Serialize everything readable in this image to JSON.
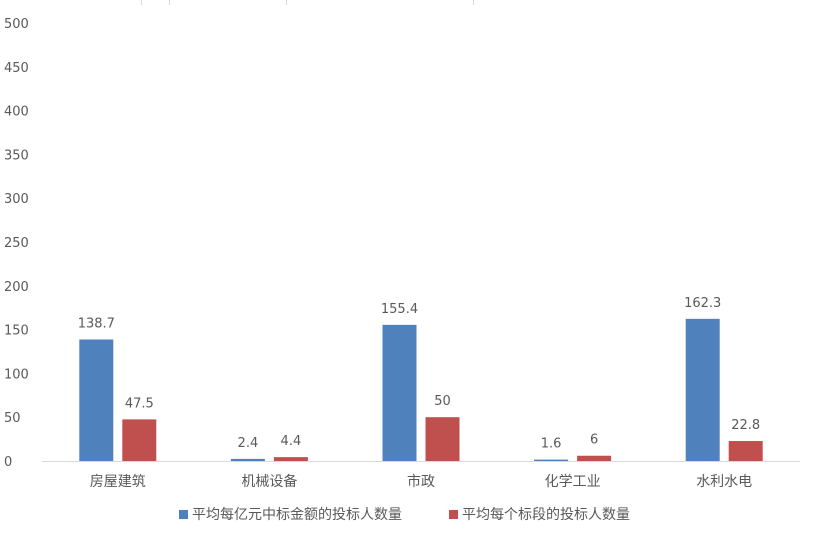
{
  "chart_data": {
    "type": "bar",
    "categories": [
      "房屋建筑",
      "机械设备",
      "市政",
      "化学工业",
      "水利水电"
    ],
    "series": [
      {
        "name": "平均每亿元中标金额的投标人数量",
        "values": [
          138.7,
          2.4,
          155.4,
          1.6,
          162.3
        ],
        "labels": [
          "138.7",
          "2.4",
          "155.4",
          "1.6",
          "162.3"
        ],
        "color": "#4f81bd"
      },
      {
        "name": "平均每个标段的投标人数量",
        "values": [
          47.5,
          4.4,
          50,
          6,
          22.8
        ],
        "labels": [
          "47.5",
          "4.4",
          "50",
          "6",
          "22.8"
        ],
        "color": "#c0504d"
      }
    ],
    "ylim": [
      0,
      500
    ],
    "yticks": [
      "0",
      "50",
      "100",
      "150",
      "200",
      "250",
      "300",
      "350",
      "400",
      "450",
      "500"
    ],
    "grid": false,
    "legend": "bottom"
  }
}
